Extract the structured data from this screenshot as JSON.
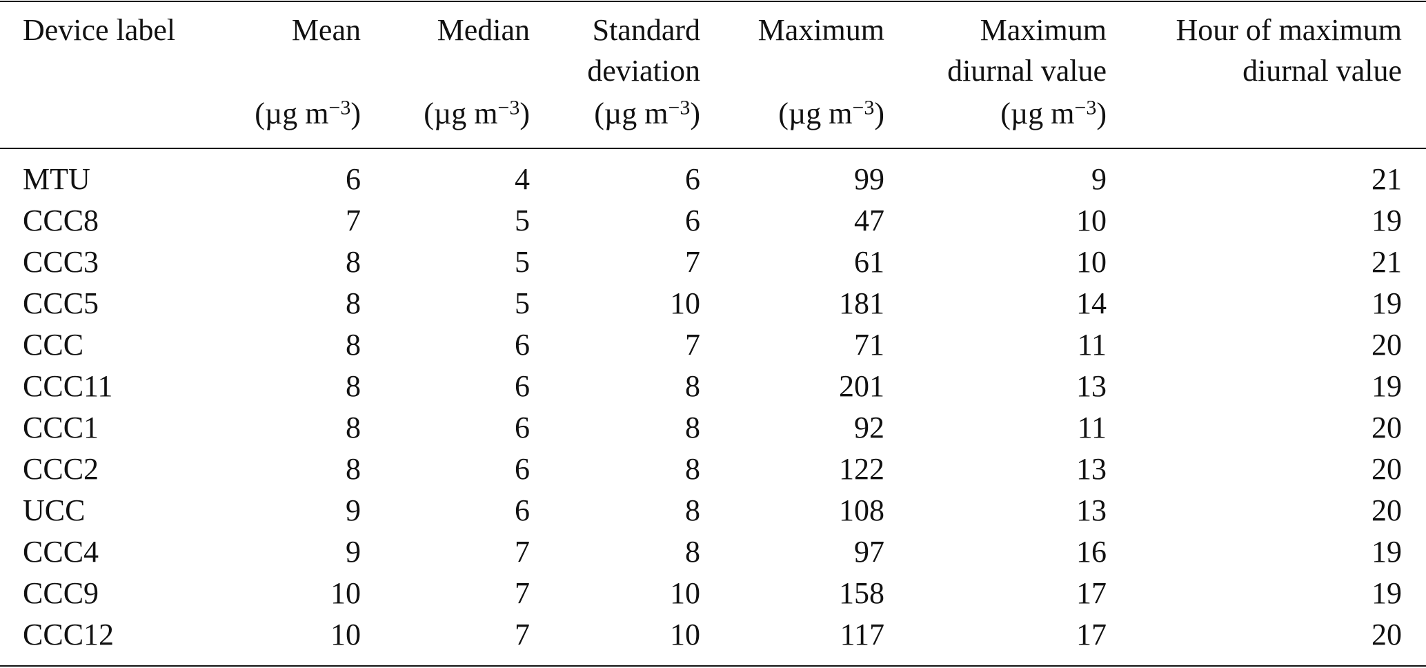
{
  "table": {
    "columns": [
      {
        "lines": [
          "Device label"
        ]
      },
      {
        "lines": [
          "Mean"
        ],
        "unit": {
          "open": "(µg m",
          "exponent": "−3",
          "close": ")"
        }
      },
      {
        "lines": [
          "Median"
        ],
        "unit": {
          "open": "(µg m",
          "exponent": "−3",
          "close": ")"
        }
      },
      {
        "lines": [
          "Standard",
          "deviation"
        ],
        "unit": {
          "open": "(µg m",
          "exponent": "−3",
          "close": ")"
        }
      },
      {
        "lines": [
          "Maximum"
        ],
        "unit": {
          "open": "(µg m",
          "exponent": "−3",
          "close": ")"
        }
      },
      {
        "lines": [
          "Maximum",
          "diurnal value"
        ],
        "unit": {
          "open": "(µg m",
          "exponent": "−3",
          "close": ")"
        }
      },
      {
        "lines": [
          "Hour of maximum",
          "diurnal value"
        ]
      }
    ],
    "rows": [
      [
        "MTU",
        6,
        4,
        6,
        99,
        9,
        21
      ],
      [
        "CCC8",
        7,
        5,
        6,
        47,
        10,
        19
      ],
      [
        "CCC3",
        8,
        5,
        7,
        61,
        10,
        21
      ],
      [
        "CCC5",
        8,
        5,
        10,
        181,
        14,
        19
      ],
      [
        "CCC",
        8,
        6,
        7,
        71,
        11,
        20
      ],
      [
        "CCC11",
        8,
        6,
        8,
        201,
        13,
        19
      ],
      [
        "CCC1",
        8,
        6,
        8,
        92,
        11,
        20
      ],
      [
        "CCC2",
        8,
        6,
        8,
        122,
        13,
        20
      ],
      [
        "UCC",
        9,
        6,
        8,
        108,
        13,
        20
      ],
      [
        "CCC4",
        9,
        7,
        8,
        97,
        16,
        19
      ],
      [
        "CCC9",
        10,
        7,
        10,
        158,
        17,
        19
      ],
      [
        "CCC12",
        10,
        7,
        10,
        117,
        17,
        20
      ]
    ]
  }
}
